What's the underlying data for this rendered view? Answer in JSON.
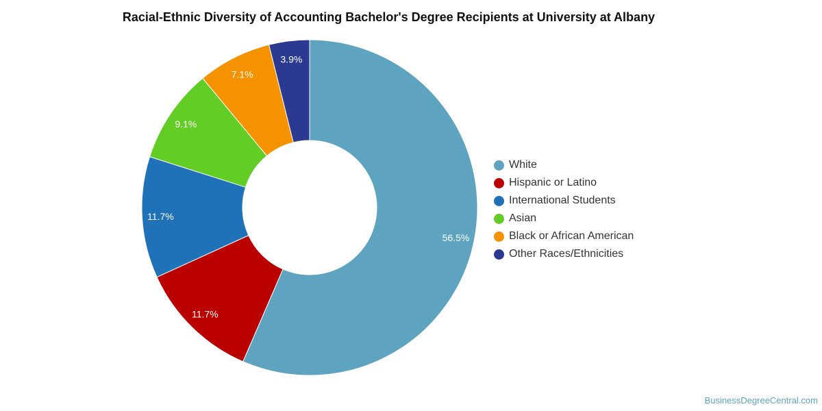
{
  "chart_data": {
    "type": "pie",
    "variant": "donut",
    "title": "Racial-Ethnic Diversity of Accounting Bachelor's Degree Recipients at University at Albany",
    "legend_position": "right",
    "slices": [
      {
        "label": "White",
        "value": 56.5,
        "value_label": "56.5%",
        "color": "#5ea3c0"
      },
      {
        "label": "Hispanic or Latino",
        "value": 11.7,
        "value_label": "11.7%",
        "color": "#bb0000"
      },
      {
        "label": "International Students",
        "value": 11.7,
        "value_label": "11.7%",
        "color": "#1f72b8"
      },
      {
        "label": "Asian",
        "value": 9.1,
        "value_label": "9.1%",
        "color": "#62cd24"
      },
      {
        "label": "Black or African American",
        "value": 7.1,
        "value_label": "7.1%",
        "color": "#f59200"
      },
      {
        "label": "Other Races/Ethnicities",
        "value": 3.9,
        "value_label": "3.9%",
        "color": "#2c3990"
      }
    ]
  },
  "source": "BusinessDegreeCentral.com"
}
